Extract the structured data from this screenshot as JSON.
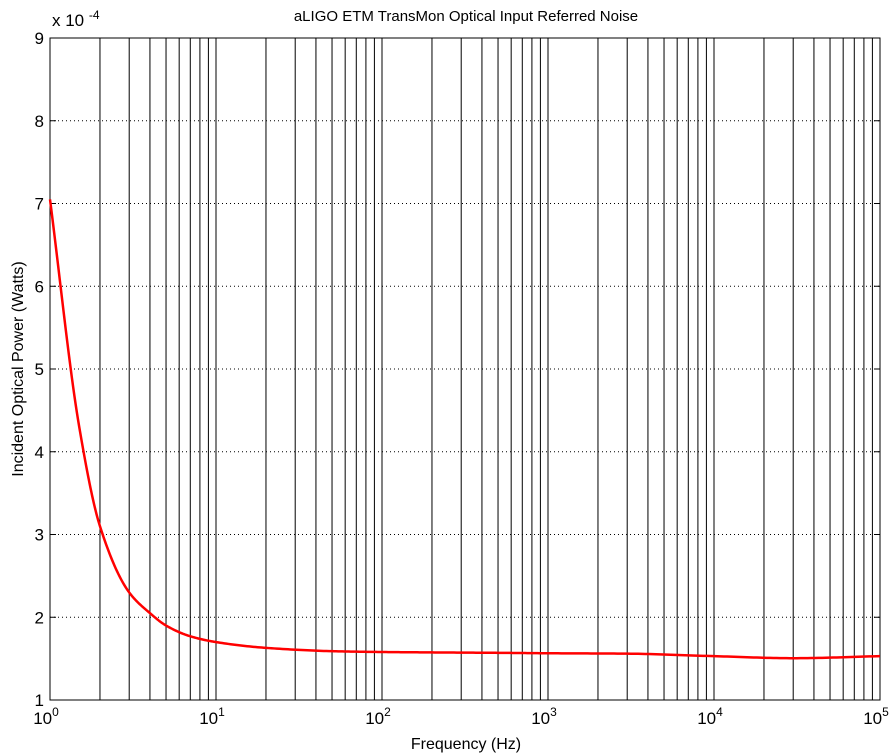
{
  "chart_data": {
    "type": "line",
    "title": "aLIGO ETM TransMon Optical Input Referred Noise",
    "xlabel": "Frequency (Hz)",
    "ylabel": "Incident Optical Power (Watts)",
    "x_scale": "log",
    "xlim": [
      1,
      100000
    ],
    "ylim": [
      1,
      9
    ],
    "y_multiplier_label": "x 10^-4",
    "x_ticks": [
      {
        "value": 1,
        "base": "10",
        "exp": "0"
      },
      {
        "value": 10,
        "base": "10",
        "exp": "1"
      },
      {
        "value": 100,
        "base": "10",
        "exp": "2"
      },
      {
        "value": 1000,
        "base": "10",
        "exp": "3"
      },
      {
        "value": 10000,
        "base": "10",
        "exp": "4"
      },
      {
        "value": 100000,
        "base": "10",
        "exp": "5"
      }
    ],
    "y_ticks": [
      1,
      2,
      3,
      4,
      5,
      6,
      7,
      8,
      9
    ],
    "grid": {
      "x_major_minor": true,
      "y_major": true,
      "y_style": "dotted"
    },
    "line_color": "#ff0000",
    "series": [
      {
        "x": [
          1,
          1.5,
          2,
          3,
          4,
          5,
          7,
          10,
          20,
          50,
          100,
          200,
          500,
          1000,
          3000,
          10000,
          30000,
          100000
        ],
        "y": [
          7.05,
          4.3,
          3.1,
          2.3,
          2.05,
          1.9,
          1.77,
          1.7,
          1.63,
          1.59,
          1.58,
          1.575,
          1.57,
          1.565,
          1.56,
          1.53,
          1.505,
          1.53
        ]
      }
    ]
  }
}
